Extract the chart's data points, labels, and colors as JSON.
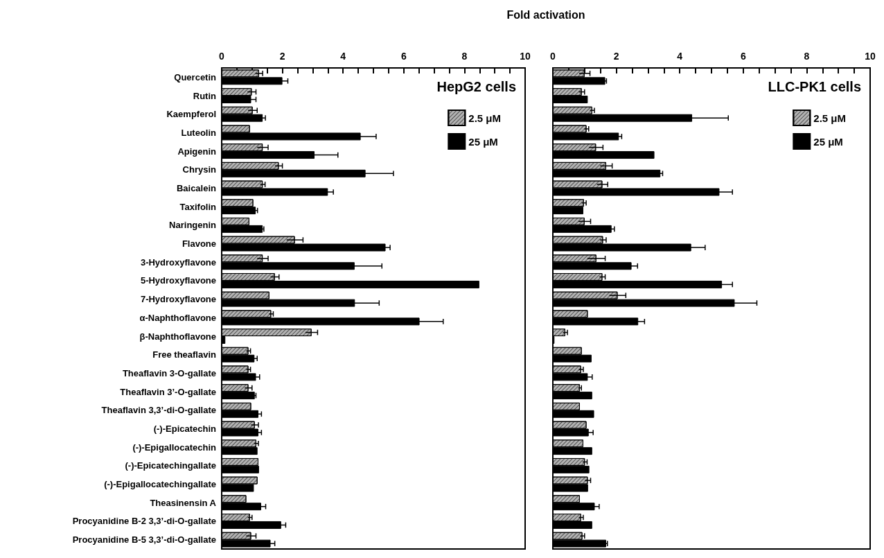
{
  "chart_data": [
    {
      "type": "bar",
      "orientation": "horizontal",
      "title": "HepG2 cells",
      "xlabel": "Fold activation",
      "categories": [
        "Quercetin",
        "Rutin",
        "Kaempferol",
        "Luteolin",
        "Apigenin",
        "Chrysin",
        "Baicalein",
        "Taxifolin",
        "Naringenin",
        "Flavone",
        "3-Hydroxyflavone",
        "5-Hydroxyflavone",
        "7-Hydroxyflavone",
        "α-Naphthoflavone",
        "β-Naphthoflavone",
        "Free theaflavin",
        "Theaflavin 3-O-gallate",
        "Theaflavin 3’-O-gallate",
        "Theaflavin 3,3’-di-O-gallate",
        "(-)-Epicatechin",
        "(-)-Epigallocatechin",
        "(-)-Epicatechingallate",
        "(-)-Epigallocatechingallate",
        "Theasinensin A",
        "Procyanidine B-2 3,3’-di-O-gallate",
        "Procyanidine B-5 3,3’-di-O-gallate"
      ],
      "series": [
        {
          "name": "2.5 μM",
          "color": "#b3b3b3",
          "values": [
            1.23,
            0.99,
            1.02,
            0.93,
            1.35,
            1.88,
            1.35,
            1.04,
            0.91,
            2.41,
            1.35,
            1.75,
            1.57,
            1.63,
            2.96,
            0.88,
            0.88,
            0.88,
            0.97,
            1.09,
            1.14,
            1.21,
            1.18,
            0.81,
            0.93,
            0.97
          ],
          "errors": [
            0.12,
            0.14,
            0.15,
            null,
            0.18,
            0.12,
            0.08,
            null,
            null,
            0.27,
            0.18,
            0.14,
            null,
            0.07,
            0.2,
            0.07,
            0.07,
            0.12,
            null,
            0.12,
            0.07,
            null,
            null,
            null,
            0.07,
            0.16
          ]
        },
        {
          "name": "25 μM",
          "color": "#000000",
          "values": [
            2.0,
            0.97,
            1.35,
            4.58,
            3.06,
            4.74,
            3.5,
            1.12,
            1.35,
            5.4,
            4.38,
            8.49,
            4.39,
            6.52,
            0.12,
            1.08,
            1.13,
            1.09,
            1.21,
            1.21,
            1.18,
            1.23,
            1.06,
            1.3,
            1.96,
            1.61
          ],
          "errors": [
            0.18,
            0.16,
            0.09,
            0.51,
            0.77,
            0.92,
            0.18,
            0.06,
            0.04,
            0.15,
            0.9,
            null,
            0.8,
            0.78,
            null,
            0.09,
            0.12,
            0.04,
            0.1,
            0.1,
            null,
            null,
            null,
            0.15,
            0.15,
            0.14
          ]
        }
      ],
      "xlim": [
        0,
        10
      ],
      "xticks": [
        0,
        2,
        4,
        6,
        8,
        10
      ],
      "legend": "top right"
    },
    {
      "type": "bar",
      "orientation": "horizontal",
      "title": "LLC-PK1 cells",
      "tick_labels": "x",
      "categories": [
        null,
        null,
        null,
        null,
        null,
        null,
        null,
        null,
        null,
        null,
        null,
        null,
        null,
        null,
        null,
        null,
        null,
        null,
        null,
        null,
        null,
        null,
        null,
        null,
        null,
        null
      ],
      "series": [
        {
          "name": "2.5 μM",
          "color": "#b3b3b3",
          "values": [
            1.0,
            0.91,
            1.24,
            1.06,
            1.36,
            1.68,
            1.56,
            0.98,
            1.0,
            1.58,
            1.37,
            1.56,
            2.04,
            1.1,
            0.39,
            0.91,
            0.89,
            0.85,
            0.85,
            1.06,
            0.96,
            1.01,
            1.1,
            0.85,
            0.89,
            0.93
          ],
          "errors": [
            0.17,
            0.09,
            0.07,
            0.07,
            0.22,
            0.19,
            0.17,
            0.07,
            0.19,
            0.1,
            0.28,
            0.09,
            0.26,
            null,
            0.07,
            null,
            0.07,
            0.05,
            null,
            null,
            null,
            0.07,
            0.09,
            null,
            0.07,
            0.07
          ]
        },
        {
          "name": "25 μM",
          "color": "#000000",
          "values": [
            1.65,
            1.1,
            4.39,
            2.08,
            3.2,
            3.39,
            5.25,
            0.96,
            1.85,
            4.36,
            2.48,
            5.33,
            5.73,
            2.69,
            0.05,
            1.22,
            1.1,
            1.24,
            1.3,
            1.13,
            1.24,
            1.15,
            1.11,
            1.32,
            1.24,
            1.68
          ],
          "errors": [
            0.04,
            null,
            1.14,
            0.09,
            null,
            0.07,
            0.41,
            null,
            0.09,
            0.44,
            0.19,
            0.33,
            0.7,
            0.2,
            null,
            null,
            0.14,
            null,
            null,
            0.14,
            null,
            null,
            null,
            0.14,
            null,
            0.04
          ]
        }
      ],
      "xlim": [
        0,
        10
      ],
      "xticks": [
        0,
        2,
        4,
        6,
        8,
        10
      ],
      "legend": "top right"
    }
  ]
}
